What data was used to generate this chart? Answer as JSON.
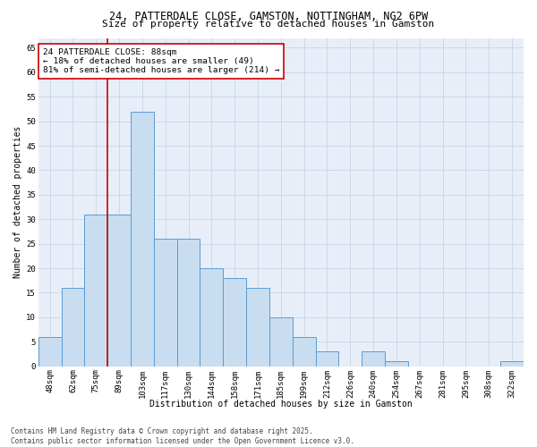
{
  "title1": "24, PATTERDALE CLOSE, GAMSTON, NOTTINGHAM, NG2 6PW",
  "title2": "Size of property relative to detached houses in Gamston",
  "xlabel": "Distribution of detached houses by size in Gamston",
  "ylabel": "Number of detached properties",
  "categories": [
    "48sqm",
    "62sqm",
    "75sqm",
    "89sqm",
    "103sqm",
    "117sqm",
    "130sqm",
    "144sqm",
    "158sqm",
    "171sqm",
    "185sqm",
    "199sqm",
    "212sqm",
    "226sqm",
    "240sqm",
    "254sqm",
    "267sqm",
    "281sqm",
    "295sqm",
    "308sqm",
    "322sqm"
  ],
  "values": [
    6,
    16,
    31,
    31,
    52,
    26,
    26,
    20,
    18,
    16,
    10,
    6,
    3,
    0,
    3,
    1,
    0,
    0,
    0,
    0,
    1
  ],
  "bar_color": "#c8ddf0",
  "bar_edge_color": "#5b9bd5",
  "property_line_x": 2.5,
  "annotation_text": "24 PATTERDALE CLOSE: 88sqm\n← 18% of detached houses are smaller (49)\n81% of semi-detached houses are larger (214) →",
  "annotation_box_color": "#ffffff",
  "annotation_box_edge": "#cc0000",
  "property_line_color": "#cc0000",
  "grid_color": "#c8d4e8",
  "background_color": "#e8eef8",
  "ylim": [
    0,
    67
  ],
  "yticks": [
    0,
    5,
    10,
    15,
    20,
    25,
    30,
    35,
    40,
    45,
    50,
    55,
    60,
    65
  ],
  "footer": "Contains HM Land Registry data © Crown copyright and database right 2025.\nContains public sector information licensed under the Open Government Licence v3.0.",
  "title_fontsize": 8.5,
  "subtitle_fontsize": 8,
  "axis_label_fontsize": 7,
  "tick_fontsize": 6.5,
  "annotation_fontsize": 6.8,
  "footer_fontsize": 5.5
}
